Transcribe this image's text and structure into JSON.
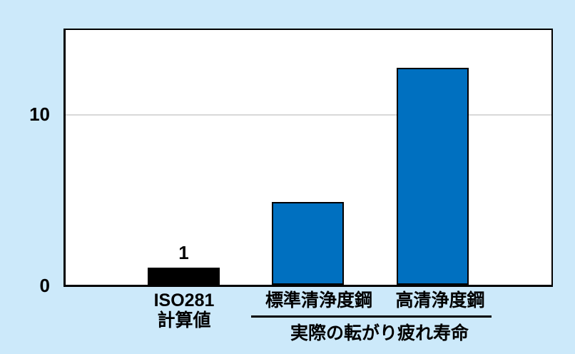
{
  "colors": {
    "page_background": "#CCE9FA",
    "plot_background": "#FFFFFF",
    "axis_border": "#000000",
    "gridline": "#D9D9D9",
    "bar_blue": "#0070C0",
    "bar_black": "#000000",
    "text": "#000000",
    "underline": "#000000"
  },
  "chart_data": {
    "type": "bar",
    "title": "",
    "xlabel": "",
    "ylabel": "",
    "categories": [
      "ISO281 計算値",
      "標準清浄度鋼",
      "高清浄度鋼"
    ],
    "values": [
      1,
      4.9,
      12.8
    ],
    "bar_colors": [
      "#000000",
      "#0070C0",
      "#0070C0"
    ],
    "bar_border_color": "#000000",
    "value_labels": [
      "1",
      "",
      ""
    ],
    "ylim": [
      0,
      15
    ],
    "ytick_labels": [
      "0",
      "10"
    ],
    "ytick_values": [
      0,
      10
    ],
    "gridline_values": [
      10
    ],
    "grid": "horizontal line at y=10 only",
    "legend": "none",
    "x_group_label": "実際の転がり疲れ寿命",
    "x_group_members": [
      "標準清浄度鋼",
      "高清浄度鋼"
    ]
  },
  "category_labels": {
    "bar1_line1": "ISO281",
    "bar1_line2": "計算値",
    "bar2": "標準清浄度鋼",
    "bar3": "高清浄度鋼"
  }
}
